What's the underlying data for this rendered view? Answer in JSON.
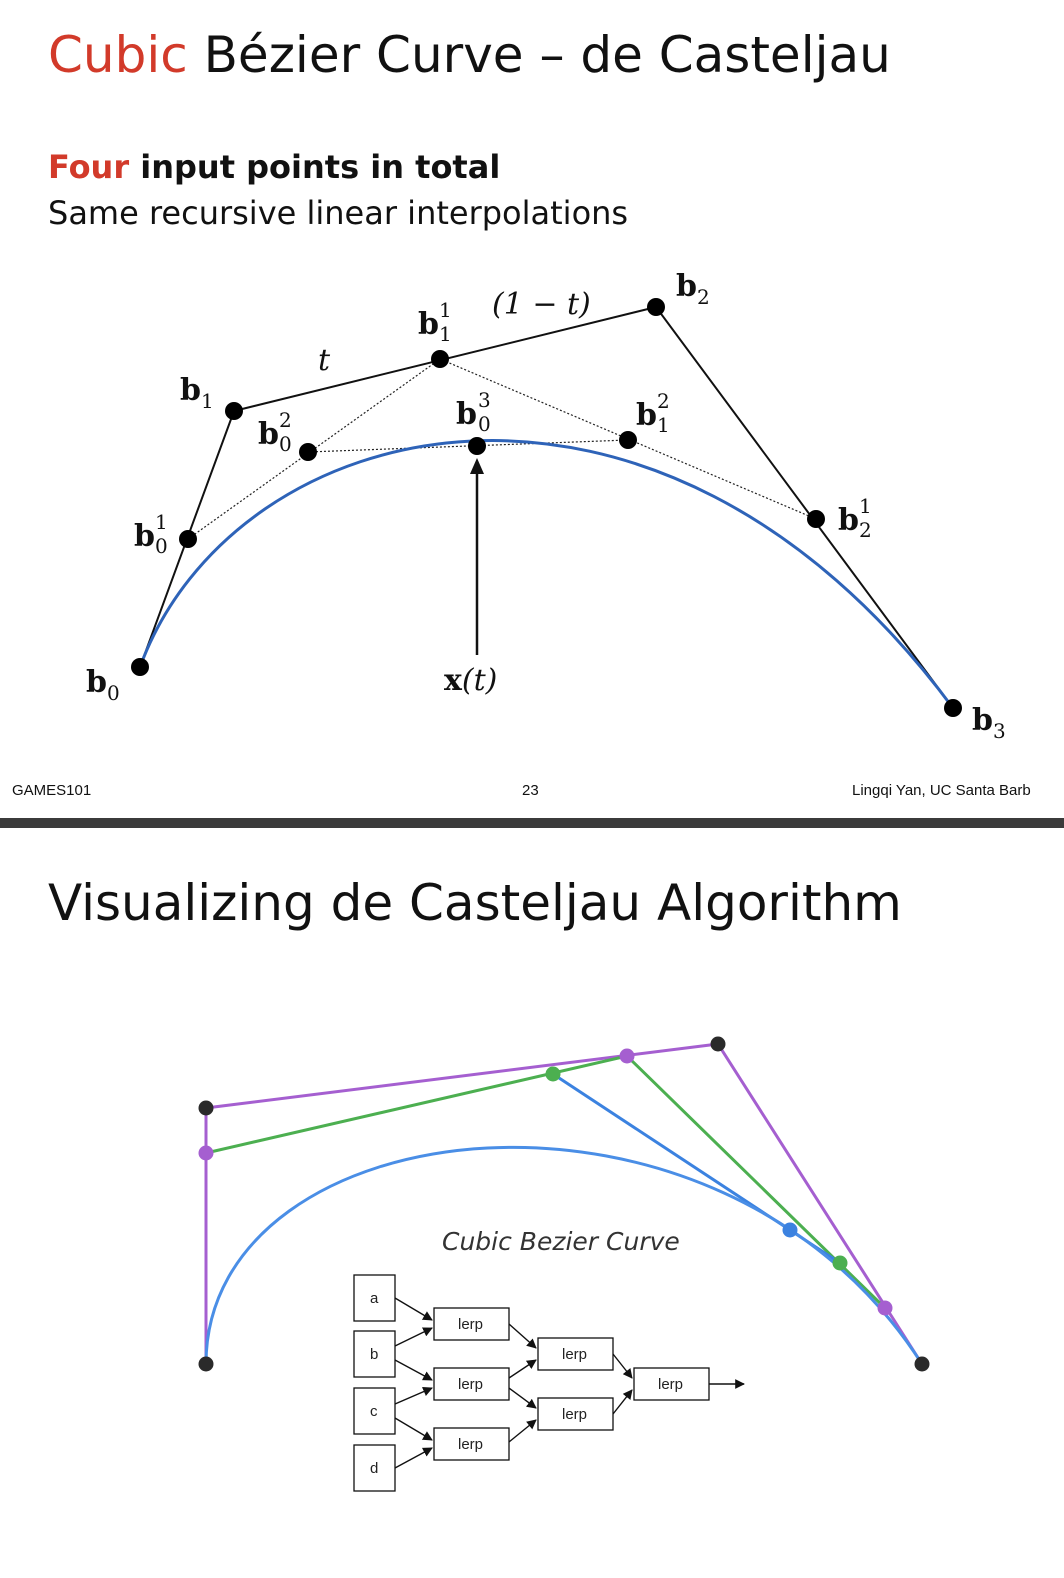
{
  "slide1": {
    "title_accent": "Cubic",
    "title_rest": " Bézier Curve – de Casteljau",
    "subtitle_accent": "Four",
    "subtitle_bold_rest": " input points in total",
    "subtitle_line2": "Same recursive linear interpolations",
    "diagram": {
      "labels": {
        "b0": {
          "base": "b",
          "sub": "0",
          "sup": ""
        },
        "b1": {
          "base": "b",
          "sub": "1",
          "sup": ""
        },
        "b2": {
          "base": "b",
          "sub": "2",
          "sup": ""
        },
        "b3": {
          "base": "b",
          "sub": "3",
          "sup": ""
        },
        "b01": {
          "base": "b",
          "sub": "0",
          "sup": "1"
        },
        "b11": {
          "base": "b",
          "sub": "1",
          "sup": "1"
        },
        "b21": {
          "base": "b",
          "sub": "2",
          "sup": "1"
        },
        "b02": {
          "base": "b",
          "sub": "0",
          "sup": "2"
        },
        "b12": {
          "base": "b",
          "sub": "1",
          "sup": "2"
        },
        "b03": {
          "base": "b",
          "sub": "0",
          "sup": "3"
        }
      },
      "t_label": "t",
      "one_minus_t_label": "(1 − t)",
      "xt_label_bold": "x",
      "xt_label_rest": "(t)"
    },
    "footer": {
      "left": "GAMES101",
      "page": "23",
      "right": "Lingqi Yan, UC Santa Barb"
    }
  },
  "slide2": {
    "title": "Visualizing de Casteljau Algorithm",
    "diagram_caption": "Cubic Bezier Curve",
    "inputs": [
      "a",
      "b",
      "c",
      "d"
    ],
    "lerp_label": "lerp",
    "colors": {
      "control_polygon": "#a55fd0",
      "level2": "#4caf50",
      "level3": "#3b82e0",
      "curve": "#4a8ee6",
      "point": "#2a2a2a"
    }
  },
  "colors": {
    "accent": "#d23a2a",
    "curve_slide1": "#2e63b8"
  }
}
